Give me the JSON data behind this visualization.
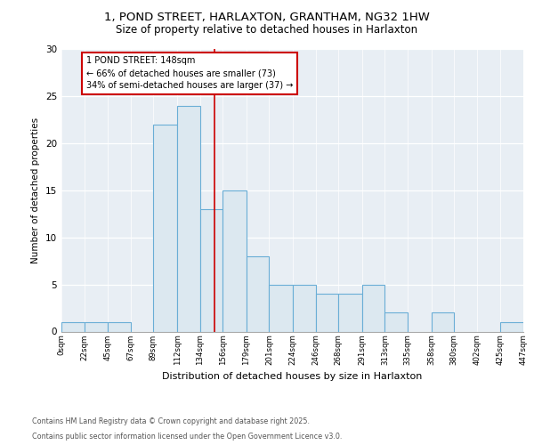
{
  "title_line1": "1, POND STREET, HARLAXTON, GRANTHAM, NG32 1HW",
  "title_line2": "Size of property relative to detached houses in Harlaxton",
  "xlabel": "Distribution of detached houses by size in Harlaxton",
  "ylabel": "Number of detached properties",
  "bin_edges": [
    0,
    22,
    45,
    67,
    89,
    112,
    134,
    156,
    179,
    201,
    224,
    246,
    268,
    291,
    313,
    335,
    358,
    380,
    402,
    425,
    447
  ],
  "bin_labels": [
    "0sqm",
    "22sqm",
    "45sqm",
    "67sqm",
    "89sqm",
    "112sqm",
    "134sqm",
    "156sqm",
    "179sqm",
    "201sqm",
    "224sqm",
    "246sqm",
    "268sqm",
    "291sqm",
    "313sqm",
    "335sqm",
    "358sqm",
    "380sqm",
    "402sqm",
    "425sqm",
    "447sqm"
  ],
  "bar_heights": [
    1,
    1,
    1,
    0,
    22,
    24,
    13,
    15,
    8,
    5,
    5,
    4,
    4,
    5,
    2,
    0,
    2,
    0,
    0,
    1
  ],
  "bar_color": "#dce8f0",
  "bar_edge_color": "#6aaed6",
  "ref_line_x": 148,
  "ref_line_color": "#cc0000",
  "annotation_title": "1 POND STREET: 148sqm",
  "annotation_line2": "← 66% of detached houses are smaller (73)",
  "annotation_line3": "34% of semi-detached houses are larger (37) →",
  "annotation_box_color": "#ffffff",
  "annotation_box_edge_color": "#cc0000",
  "ylim": [
    0,
    30
  ],
  "yticks": [
    0,
    5,
    10,
    15,
    20,
    25,
    30
  ],
  "plot_bg_color": "#e8eef4",
  "footer_line1": "Contains HM Land Registry data © Crown copyright and database right 2025.",
  "footer_line2": "Contains public sector information licensed under the Open Government Licence v3.0."
}
